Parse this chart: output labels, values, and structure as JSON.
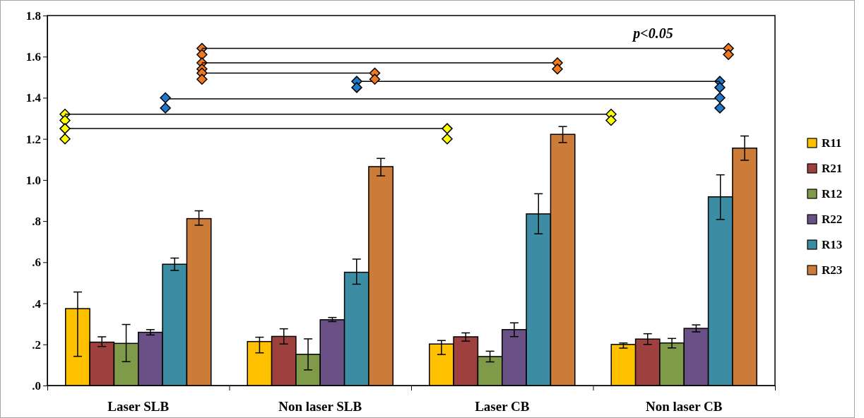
{
  "chart_data": {
    "type": "bar",
    "categories": [
      "Laser SLB",
      "Non laser SLB",
      "Laser CB",
      "Non laser CB"
    ],
    "series": [
      {
        "name": "R11",
        "color": "#ffc000",
        "values": [
          0.374,
          0.214,
          0.202,
          0.2
        ],
        "errors": [
          [
            0.142,
            0.455
          ],
          [
            0.159,
            0.235
          ],
          [
            0.151,
            0.219
          ],
          [
            0.182,
            0.207
          ]
        ]
      },
      {
        "name": "R21",
        "color": "#9e413e",
        "values": [
          0.211,
          0.239,
          0.237,
          0.226
        ],
        "errors": [
          [
            0.19,
            0.237
          ],
          [
            0.202,
            0.276
          ],
          [
            0.216,
            0.256
          ],
          [
            0.2,
            0.252
          ]
        ]
      },
      {
        "name": "R12",
        "color": "#7f9a48",
        "values": [
          0.205,
          0.152,
          0.141,
          0.207
        ],
        "errors": [
          [
            0.116,
            0.297
          ],
          [
            0.076,
            0.227
          ],
          [
            0.115,
            0.167
          ],
          [
            0.183,
            0.229
          ]
        ]
      },
      {
        "name": "R22",
        "color": "#695185",
        "values": [
          0.259,
          0.32,
          0.272,
          0.278
        ],
        "errors": [
          [
            0.246,
            0.272
          ],
          [
            0.311,
            0.331
          ],
          [
            0.238,
            0.305
          ],
          [
            0.261,
            0.295
          ]
        ]
      },
      {
        "name": "R13",
        "color": "#3c8da3",
        "values": [
          0.59,
          0.551,
          0.835,
          0.918
        ],
        "errors": [
          [
            0.56,
            0.62
          ],
          [
            0.493,
            0.615
          ],
          [
            0.738,
            0.933
          ],
          [
            0.808,
            1.025
          ]
        ]
      },
      {
        "name": "R23",
        "color": "#cc7b38",
        "values": [
          0.812,
          1.065,
          1.222,
          1.155
        ],
        "errors": [
          [
            0.78,
            0.85
          ],
          [
            1.02,
            1.105
          ],
          [
            1.182,
            1.26
          ],
          [
            1.096,
            1.214
          ]
        ]
      }
    ],
    "ylim": [
      0,
      1.8
    ],
    "yticks": [
      {
        "value": 0,
        "label": ".0"
      },
      {
        "value": 0.2,
        "label": ".2"
      },
      {
        "value": 0.4,
        "label": ".4"
      },
      {
        "value": 0.6,
        "label": ".6"
      },
      {
        "value": 0.8,
        "label": ".8"
      },
      {
        "value": 1.0,
        "label": "1.0"
      },
      1.2,
      1.4,
      1.6,
      1.8
    ],
    "legend": "right",
    "annotations": [
      "p<0.05"
    ]
  }
}
